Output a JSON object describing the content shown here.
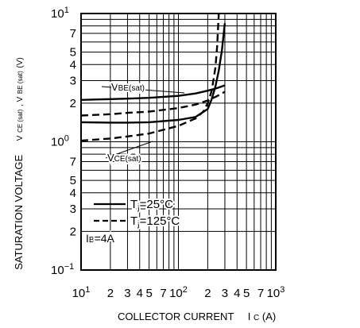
{
  "chart_data": {
    "type": "line",
    "title": "",
    "ylabel_parts": {
      "main": "SATURATION VOLTAGE",
      "sub1_base": "V",
      "sub1_sub": "CE (sat)",
      "sep": ", ",
      "sub2_base": "V",
      "sub2_sub": "BE (sat)",
      "unit": " (V)"
    },
    "xlabel_parts": {
      "main": "COLLECTOR CURRENT",
      "sym_base": "I",
      "sym_sub": "C",
      "unit": " (A)"
    },
    "x_scale": "log",
    "y_scale": "log",
    "xlim": [
      10,
      1000
    ],
    "ylim": [
      0.1,
      10
    ],
    "grid": true,
    "x_tick_labels": [
      {
        "v": 10,
        "base": "10",
        "sup": "1"
      },
      {
        "v": 20,
        "base": "2",
        "sup": ""
      },
      {
        "v": 30,
        "base": "3",
        "sup": ""
      },
      {
        "v": 40,
        "base": "4",
        "sup": ""
      },
      {
        "v": 50,
        "base": "5",
        "sup": ""
      },
      {
        "v": 70,
        "base": "7",
        "sup": ""
      },
      {
        "v": 100,
        "base": "10",
        "sup": "2"
      },
      {
        "v": 200,
        "base": "2",
        "sup": ""
      },
      {
        "v": 300,
        "base": "3",
        "sup": ""
      },
      {
        "v": 400,
        "base": "4",
        "sup": ""
      },
      {
        "v": 500,
        "base": "5",
        "sup": ""
      },
      {
        "v": 700,
        "base": "7",
        "sup": ""
      },
      {
        "v": 1000,
        "base": "10",
        "sup": "3"
      }
    ],
    "y_tick_labels": [
      {
        "v": 10,
        "base": "10",
        "sup": "1"
      },
      {
        "v": 7,
        "base": "7",
        "sup": ""
      },
      {
        "v": 5,
        "base": "5",
        "sup": ""
      },
      {
        "v": 4,
        "base": "4",
        "sup": ""
      },
      {
        "v": 3,
        "base": "3",
        "sup": ""
      },
      {
        "v": 2,
        "base": "2",
        "sup": ""
      },
      {
        "v": 1,
        "base": "10",
        "sup": "0"
      },
      {
        "v": 0.7,
        "base": "7",
        "sup": ""
      },
      {
        "v": 0.5,
        "base": "5",
        "sup": ""
      },
      {
        "v": 0.4,
        "base": "4",
        "sup": ""
      },
      {
        "v": 0.3,
        "base": "3",
        "sup": ""
      },
      {
        "v": 0.2,
        "base": "2",
        "sup": ""
      },
      {
        "v": 0.1,
        "base": "10",
        "sup": "−1"
      }
    ],
    "series": [
      {
        "group": "VBE(sat)",
        "temp": "Tj=25°C",
        "style": "solid",
        "x": [
          10,
          20,
          30,
          50,
          100,
          150,
          200,
          250,
          300
        ],
        "y": [
          2.12,
          2.15,
          2.17,
          2.2,
          2.28,
          2.38,
          2.5,
          2.62,
          2.75
        ]
      },
      {
        "group": "VBE(sat)",
        "temp": "Tj=125°C",
        "style": "dashed",
        "x": [
          10,
          20,
          30,
          50,
          100,
          150,
          200,
          250,
          300
        ],
        "y": [
          1.6,
          1.64,
          1.68,
          1.72,
          1.83,
          1.95,
          2.1,
          2.27,
          2.45
        ]
      },
      {
        "group": "VCE(sat)",
        "temp": "Tj=25°C",
        "style": "solid",
        "x": [
          10,
          20,
          30,
          50,
          100,
          150,
          200,
          220,
          240,
          260,
          280,
          300
        ],
        "y": [
          1.42,
          1.41,
          1.41,
          1.42,
          1.48,
          1.56,
          1.8,
          2.15,
          2.7,
          3.6,
          5.2,
          8.4
        ]
      },
      {
        "group": "VCE(sat)",
        "temp": "Tj=125°C",
        "style": "dashed",
        "x": [
          10,
          20,
          30,
          50,
          100,
          150,
          180,
          200,
          220,
          240,
          250,
          260
        ],
        "y": [
          1.02,
          1.06,
          1.1,
          1.16,
          1.33,
          1.52,
          1.72,
          2.0,
          2.5,
          3.8,
          5.5,
          10
        ]
      }
    ],
    "annotations": {
      "vbe_base": "V",
      "vbe_sub": "BE(sat)",
      "vce_base": "V",
      "vce_sub": "CE(sat)",
      "ib_base": "I",
      "ib_sub": "B",
      "ib_value": "=4A"
    },
    "legend": [
      {
        "style": "solid",
        "base": "T",
        "sub": "j",
        "rest": "=25°C"
      },
      {
        "style": "dashed",
        "base": "T",
        "sub": "j",
        "rest": "=125°C"
      }
    ],
    "legend_position": "lower-left"
  }
}
